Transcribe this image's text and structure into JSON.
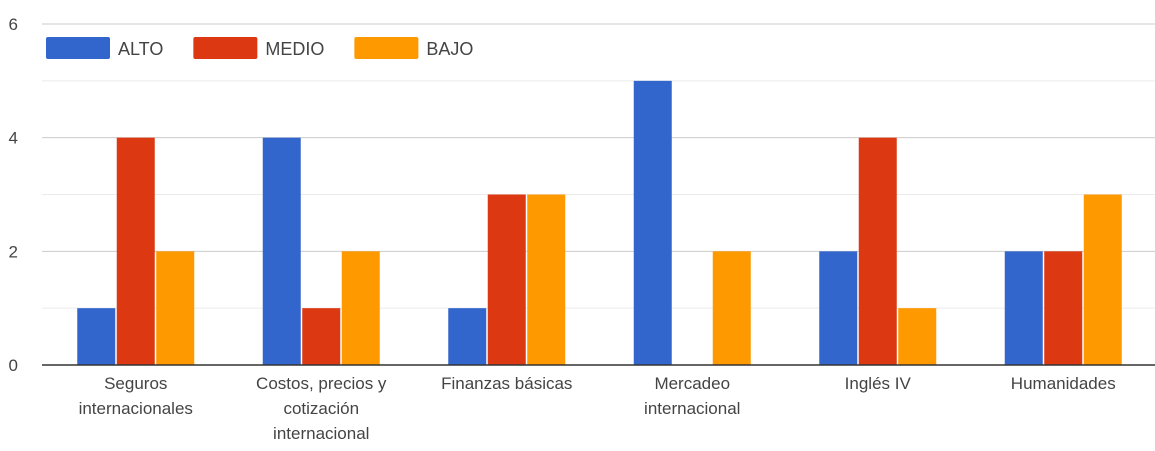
{
  "chart_data": {
    "type": "bar",
    "categories": [
      [
        "Seguros",
        "internacionales"
      ],
      [
        "Costos, precios y",
        "cotización",
        "internacional"
      ],
      [
        "Finanzas básicas"
      ],
      [
        "Mercadeo",
        "internacional"
      ],
      [
        "Inglés IV"
      ],
      [
        "Humanidades"
      ]
    ],
    "series": [
      {
        "name": "ALTO",
        "color": "#3366cc",
        "values": [
          1,
          4,
          1,
          5,
          2,
          2
        ]
      },
      {
        "name": "MEDIO",
        "color": "#dc3912",
        "values": [
          4,
          1,
          3,
          0,
          4,
          2
        ]
      },
      {
        "name": "BAJO",
        "color": "#ff9900",
        "values": [
          2,
          2,
          3,
          2,
          1,
          3
        ]
      }
    ],
    "ylim": [
      0,
      6
    ],
    "yticks": [
      "0",
      "2",
      "4",
      "6"
    ],
    "grid": true,
    "legend": "top-left"
  }
}
